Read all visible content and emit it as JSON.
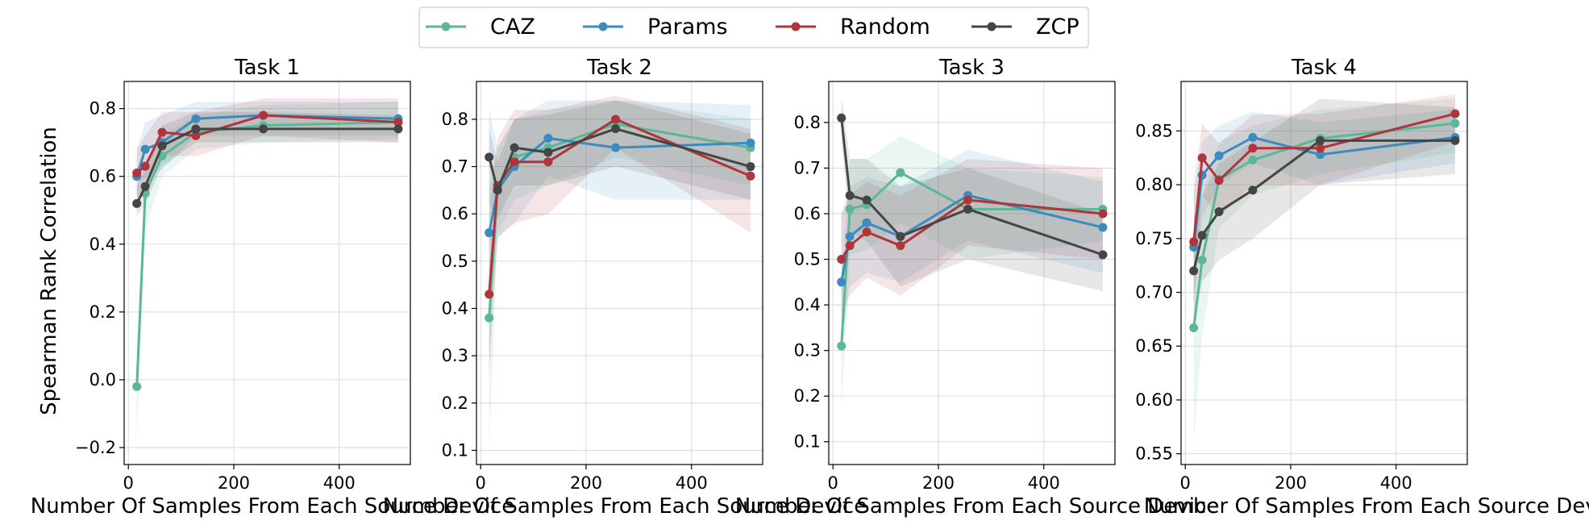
{
  "figure": {
    "ylabel": "Spearman Rank Correlation",
    "xlabel": "Number Of Samples From Each Source Device"
  },
  "legend": {
    "placement": "top-center",
    "entries": [
      {
        "label": "CAZ",
        "color": "#5bb795"
      },
      {
        "label": "Params",
        "color": "#3b8bbf"
      },
      {
        "label": "Random",
        "color": "#b0353b"
      },
      {
        "label": "ZCP",
        "color": "#454545"
      }
    ]
  },
  "chart_data": [
    {
      "type": "line",
      "title": "Task 1",
      "xlabel": "Number Of Samples From Each Source Device",
      "ylabel": "Spearman Rank Correlation",
      "xlim": [
        -8,
        535
      ],
      "ylim": [
        -0.25,
        0.88
      ],
      "xticks": [
        0,
        200,
        400
      ],
      "yticks": [
        -0.2,
        0.0,
        0.2,
        0.4,
        0.6,
        0.8
      ],
      "grid": true,
      "x": [
        16,
        32,
        64,
        128,
        256,
        512
      ],
      "series": [
        {
          "name": "CAZ",
          "color": "#5bb795",
          "values": [
            -0.02,
            0.55,
            0.66,
            0.73,
            0.75,
            0.76
          ],
          "lower": [
            -0.18,
            0.44,
            0.6,
            0.68,
            0.7,
            0.71
          ],
          "upper": [
            0.08,
            0.64,
            0.72,
            0.78,
            0.81,
            0.82
          ]
        },
        {
          "name": "Params",
          "color": "#3b8bbf",
          "values": [
            0.6,
            0.68,
            0.7,
            0.77,
            0.78,
            0.77
          ],
          "lower": [
            0.52,
            0.6,
            0.62,
            0.72,
            0.72,
            0.72
          ],
          "upper": [
            0.68,
            0.76,
            0.78,
            0.82,
            0.82,
            0.82
          ]
        },
        {
          "name": "Random",
          "color": "#b0353b",
          "values": [
            0.61,
            0.63,
            0.73,
            0.72,
            0.78,
            0.76
          ],
          "lower": [
            0.54,
            0.56,
            0.66,
            0.66,
            0.72,
            0.7
          ],
          "upper": [
            0.68,
            0.72,
            0.79,
            0.79,
            0.83,
            0.83
          ]
        },
        {
          "name": "ZCP",
          "color": "#454545",
          "values": [
            0.52,
            0.57,
            0.69,
            0.74,
            0.74,
            0.74
          ],
          "lower": [
            0.48,
            0.52,
            0.63,
            0.7,
            0.7,
            0.7
          ],
          "upper": [
            0.57,
            0.63,
            0.75,
            0.79,
            0.79,
            0.78
          ]
        }
      ]
    },
    {
      "type": "line",
      "title": "Task 2",
      "xlabel": "Number Of Samples From Each Source Device",
      "ylabel": "",
      "xlim": [
        -8,
        535
      ],
      "ylim": [
        0.07,
        0.88
      ],
      "xticks": [
        0,
        200,
        400
      ],
      "yticks": [
        0.1,
        0.2,
        0.3,
        0.4,
        0.5,
        0.6,
        0.7,
        0.8
      ],
      "grid": true,
      "x": [
        16,
        32,
        64,
        128,
        256,
        512
      ],
      "series": [
        {
          "name": "CAZ",
          "color": "#5bb795",
          "values": [
            0.38,
            0.65,
            0.72,
            0.74,
            0.79,
            0.74
          ],
          "lower": [
            0.1,
            0.56,
            0.63,
            0.66,
            0.72,
            0.66
          ],
          "upper": [
            0.65,
            0.74,
            0.8,
            0.82,
            0.84,
            0.8
          ]
        },
        {
          "name": "Params",
          "color": "#3b8bbf",
          "values": [
            0.56,
            0.65,
            0.7,
            0.76,
            0.74,
            0.75
          ],
          "lower": [
            0.3,
            0.55,
            0.58,
            0.68,
            0.63,
            0.63
          ],
          "upper": [
            0.82,
            0.74,
            0.8,
            0.84,
            0.84,
            0.83
          ]
        },
        {
          "name": "Random",
          "color": "#b0353b",
          "values": [
            0.43,
            0.66,
            0.71,
            0.71,
            0.8,
            0.68
          ],
          "lower": [
            0.26,
            0.55,
            0.58,
            0.6,
            0.74,
            0.56
          ],
          "upper": [
            0.6,
            0.76,
            0.82,
            0.82,
            0.85,
            0.78
          ]
        },
        {
          "name": "ZCP",
          "color": "#454545",
          "values": [
            0.72,
            0.65,
            0.74,
            0.73,
            0.78,
            0.7
          ],
          "lower": [
            0.62,
            0.59,
            0.66,
            0.66,
            0.7,
            0.63
          ],
          "upper": [
            0.78,
            0.71,
            0.8,
            0.81,
            0.84,
            0.77
          ]
        }
      ]
    },
    {
      "type": "line",
      "title": "Task 3",
      "xlabel": "Number Of Samples From Each Source Device",
      "ylabel": "",
      "xlim": [
        -8,
        535
      ],
      "ylim": [
        0.05,
        0.89
      ],
      "xticks": [
        0,
        200,
        400
      ],
      "yticks": [
        0.1,
        0.2,
        0.3,
        0.4,
        0.5,
        0.6,
        0.7,
        0.8
      ],
      "grid": true,
      "x": [
        16,
        32,
        64,
        128,
        256,
        512
      ],
      "series": [
        {
          "name": "CAZ",
          "color": "#5bb795",
          "values": [
            0.31,
            0.61,
            0.62,
            0.69,
            0.61,
            0.61
          ],
          "lower": [
            0.17,
            0.51,
            0.52,
            0.58,
            0.5,
            0.54
          ],
          "upper": [
            0.46,
            0.72,
            0.72,
            0.77,
            0.7,
            0.68
          ]
        },
        {
          "name": "Params",
          "color": "#3b8bbf",
          "values": [
            0.45,
            0.55,
            0.58,
            0.55,
            0.64,
            0.57
          ],
          "lower": [
            0.3,
            0.44,
            0.47,
            0.45,
            0.54,
            0.47
          ],
          "upper": [
            0.6,
            0.66,
            0.68,
            0.66,
            0.74,
            0.67
          ]
        },
        {
          "name": "Random",
          "color": "#b0353b",
          "values": [
            0.5,
            0.53,
            0.56,
            0.53,
            0.63,
            0.6
          ],
          "lower": [
            0.38,
            0.42,
            0.46,
            0.42,
            0.53,
            0.5
          ],
          "upper": [
            0.6,
            0.64,
            0.67,
            0.64,
            0.72,
            0.7
          ]
        },
        {
          "name": "ZCP",
          "color": "#454545",
          "values": [
            0.81,
            0.64,
            0.63,
            0.55,
            0.61,
            0.51
          ],
          "lower": [
            0.76,
            0.56,
            0.54,
            0.44,
            0.5,
            0.43
          ],
          "upper": [
            0.86,
            0.72,
            0.72,
            0.66,
            0.7,
            0.6
          ]
        }
      ]
    },
    {
      "type": "line",
      "title": "Task 4",
      "xlabel": "Number Of Samples From Each Source Device",
      "ylabel": "",
      "xlim": [
        -8,
        535
      ],
      "ylim": [
        0.54,
        0.896
      ],
      "xticks": [
        0,
        200,
        400
      ],
      "yticks": [
        0.55,
        0.6,
        0.65,
        0.7,
        0.75,
        0.8,
        0.85
      ],
      "grid": true,
      "x": [
        16,
        32,
        64,
        128,
        256,
        512
      ],
      "series": [
        {
          "name": "CAZ",
          "color": "#5bb795",
          "values": [
            0.667,
            0.73,
            0.805,
            0.823,
            0.843,
            0.857
          ],
          "lower": [
            0.56,
            0.66,
            0.76,
            0.79,
            0.81,
            0.83
          ],
          "upper": [
            0.74,
            0.79,
            0.84,
            0.855,
            0.87,
            0.88
          ]
        },
        {
          "name": "Params",
          "color": "#3b8bbf",
          "values": [
            0.742,
            0.809,
            0.827,
            0.844,
            0.828,
            0.844
          ],
          "lower": [
            0.69,
            0.77,
            0.8,
            0.82,
            0.8,
            0.82
          ],
          "upper": [
            0.79,
            0.84,
            0.855,
            0.868,
            0.858,
            0.87
          ]
        },
        {
          "name": "Random",
          "color": "#b0353b",
          "values": [
            0.747,
            0.825,
            0.804,
            0.834,
            0.834,
            0.866
          ],
          "lower": [
            0.69,
            0.79,
            0.77,
            0.8,
            0.8,
            0.84
          ],
          "upper": [
            0.8,
            0.857,
            0.838,
            0.865,
            0.866,
            0.884
          ]
        },
        {
          "name": "ZCP",
          "color": "#454545",
          "values": [
            0.72,
            0.753,
            0.775,
            0.795,
            0.841,
            0.841
          ],
          "lower": [
            0.67,
            0.71,
            0.73,
            0.75,
            0.8,
            0.81
          ],
          "upper": [
            0.77,
            0.79,
            0.82,
            0.84,
            0.88,
            0.872
          ]
        }
      ]
    }
  ]
}
